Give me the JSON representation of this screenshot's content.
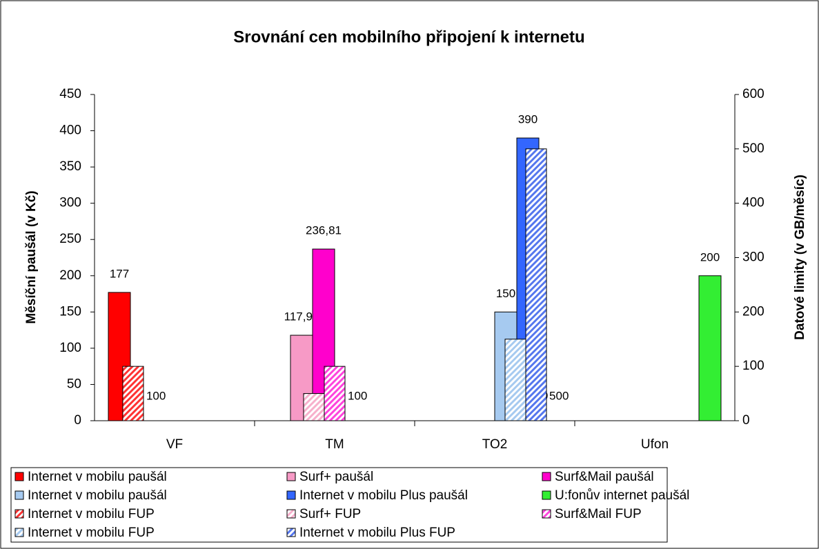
{
  "chart_data": {
    "type": "bar",
    "title": "Srovnání cen mobilního připojení k internetu",
    "y_label": "Měsíční paušál (v Kč)",
    "y2_label": "Datové limity (v GB/měsíc)",
    "categories": [
      "VF",
      "TM",
      "TO2",
      "Ufon"
    ],
    "ylim": [
      0,
      450
    ],
    "yticks": [
      0,
      50,
      100,
      150,
      200,
      250,
      300,
      350,
      400,
      450
    ],
    "y2lim": [
      0,
      600
    ],
    "y2ticks": [
      0,
      100,
      200,
      300,
      400,
      500,
      600
    ],
    "series": [
      {
        "name": "Internet v mobilu paušál",
        "color": "#ff0000",
        "values": [
          177,
          null,
          null,
          null
        ]
      },
      {
        "name": "Surf+ paušál",
        "color": "#f79ac6",
        "values": [
          null,
          117.91,
          null,
          null
        ],
        "value_labels": [
          null,
          "117,91",
          null,
          null
        ]
      },
      {
        "name": "Surf&Mail paušál",
        "color": "#ff00cc",
        "values": [
          null,
          236.81,
          null,
          null
        ],
        "value_labels": [
          null,
          "236,81",
          null,
          null
        ]
      },
      {
        "name": "Internet v mobilu paušál",
        "color": "#a6caf0",
        "values": [
          null,
          null,
          150,
          null
        ]
      },
      {
        "name": "Internet v mobilu Plus paušál",
        "color": "#3366ff",
        "values": [
          null,
          null,
          390,
          null
        ]
      },
      {
        "name": "U:fonův internet paušál",
        "color": "#33ee33",
        "values": [
          null,
          null,
          null,
          200
        ]
      },
      {
        "name": "Internet v mobilu FUP",
        "color": "#ff3333",
        "pattern": "hatch",
        "axis": "y2",
        "values": [
          100,
          null,
          null,
          null
        ]
      },
      {
        "name": "Surf+ FUP",
        "color": "#f7b0cc",
        "pattern": "hatch",
        "axis": "y2",
        "values": [
          null,
          50,
          null,
          null
        ]
      },
      {
        "name": "Surf&Mail FUP",
        "color": "#ff44dd",
        "pattern": "hatch",
        "axis": "y2",
        "values": [
          null,
          100,
          null,
          null
        ]
      },
      {
        "name": "Internet v mobilu FUP",
        "color": "#a6caf0",
        "pattern": "hatch",
        "axis": "y2",
        "values": [
          null,
          null,
          150,
          null
        ]
      },
      {
        "name": "Internet v mobilu Plus FUP",
        "color": "#5577ee",
        "pattern": "hatch",
        "axis": "y2",
        "values": [
          null,
          null,
          500,
          null
        ]
      }
    ],
    "legend": "bottom"
  }
}
